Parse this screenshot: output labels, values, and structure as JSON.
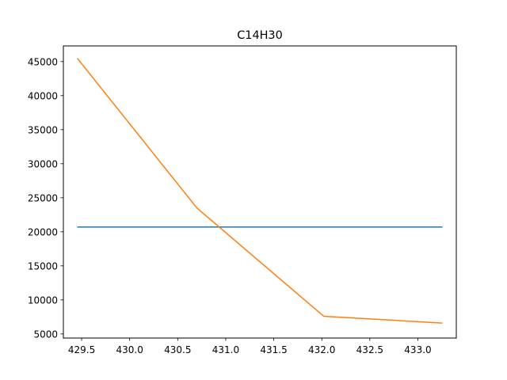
{
  "chart_data": {
    "type": "line",
    "title": "C14H30",
    "xlabel": "",
    "ylabel": "",
    "xlim": [
      429.31,
      433.4
    ],
    "ylim": [
      4400,
      47300
    ],
    "xticks": [
      429.5,
      430.0,
      430.5,
      431.0,
      431.5,
      432.0,
      432.5,
      433.0
    ],
    "xtick_labels": [
      "429.5",
      "430.0",
      "430.5",
      "431.0",
      "431.5",
      "432.0",
      "432.5",
      "433.0"
    ],
    "yticks": [
      5000,
      10000,
      15000,
      20000,
      25000,
      30000,
      35000,
      40000,
      45000
    ],
    "ytick_labels": [
      "5000",
      "10000",
      "15000",
      "20000",
      "25000",
      "30000",
      "35000",
      "40000",
      "45000"
    ],
    "grid": false,
    "series": [
      {
        "color": "#1f77b4",
        "x": [
          429.46,
          433.25
        ],
        "y": [
          20700,
          20700
        ]
      },
      {
        "color": "#ff7f0e",
        "x": [
          429.46,
          430.7,
          432.02,
          433.25
        ],
        "y": [
          45400,
          23500,
          7600,
          6600
        ]
      }
    ]
  }
}
